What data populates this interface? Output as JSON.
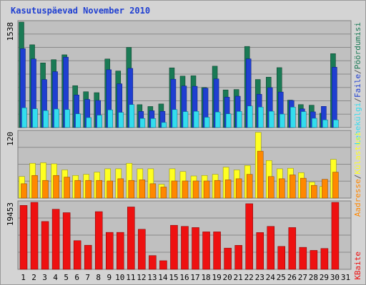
{
  "title": "Kasutuspäevad November 2010",
  "colors": {
    "page_bg": "#d4d4d4",
    "panel_bg": "#c0c0c0",
    "grid": "#8a8a8a",
    "title": "#1f3fd1",
    "weekend_tick": "#1a7a44",
    "pages_back": "#1a7a55",
    "files_mid": "#1f3fd1",
    "visits_front": "#33ddee",
    "visits_top": "#ffff22",
    "sites_front": "#ff8800",
    "kbytes": "#ee1111",
    "legend_slash": "#555555"
  },
  "chart_data": [
    {
      "type": "bar",
      "title": "Kasutuspäevad November 2010",
      "categories": [
        "1",
        "2",
        "3",
        "4",
        "5",
        "6",
        "7",
        "8",
        "9",
        "10",
        "11",
        "12",
        "13",
        "14",
        "15",
        "16",
        "17",
        "18",
        "19",
        "20",
        "21",
        "22",
        "23",
        "24",
        "25",
        "26",
        "27",
        "28",
        "29",
        "30",
        "31"
      ],
      "weekend_days": [
        "6",
        "7",
        "13",
        "14",
        "20",
        "21",
        "27",
        "28"
      ],
      "ymax_label": "1538",
      "ylim": [
        0,
        1538
      ],
      "legend": [
        "Pöördumisi",
        "Faile",
        "Lehekülgi"
      ],
      "legend_position": "right",
      "series": [
        {
          "name": "Pöördumisi",
          "values": [
            1538,
            1207,
            943,
            990,
            1061,
            611,
            522,
            509,
            1000,
            825,
            1169,
            334,
            307,
            344,
            871,
            750,
            755,
            584,
            895,
            549,
            555,
            1183,
            701,
            735,
            874,
            400,
            335,
            326,
            209,
            1078,
            0
          ]
        },
        {
          "name": "Faile",
          "values": [
            1151,
            1000,
            700,
            815,
            1027,
            475,
            410,
            395,
            843,
            638,
            863,
            235,
            245,
            237,
            705,
            606,
            602,
            574,
            709,
            443,
            457,
            1002,
            485,
            582,
            518,
            395,
            272,
            229,
            309,
            880,
            0
          ]
        },
        {
          "name": "Lehekülgi",
          "values": [
            288,
            273,
            248,
            270,
            262,
            200,
            145,
            181,
            258,
            221,
            335,
            133,
            131,
            74,
            262,
            233,
            237,
            150,
            227,
            200,
            235,
            314,
            299,
            238,
            197,
            298,
            233,
            135,
            112,
            112,
            0
          ]
        }
      ]
    },
    {
      "type": "bar",
      "categories": [
        "1",
        "2",
        "3",
        "4",
        "5",
        "6",
        "7",
        "8",
        "9",
        "10",
        "11",
        "12",
        "13",
        "14",
        "15",
        "16",
        "17",
        "18",
        "19",
        "20",
        "21",
        "22",
        "23",
        "24",
        "25",
        "26",
        "27",
        "28",
        "29",
        "30",
        "31"
      ],
      "ymax_label": "120",
      "ylim": [
        0,
        120
      ],
      "legend": [
        "Külastusi",
        "Aadresse"
      ],
      "legend_position": "right",
      "series": [
        {
          "name": "Külastusi",
          "values": [
            39,
            63,
            64,
            62,
            51,
            41,
            43,
            47,
            53,
            53,
            63,
            53,
            53,
            25,
            53,
            48,
            40,
            41,
            43,
            56,
            51,
            59,
            119,
            68,
            53,
            54,
            46,
            29,
            21,
            70,
            0
          ]
        },
        {
          "name": "Aadresse",
          "values": [
            26,
            41,
            32,
            41,
            38,
            32,
            32,
            32,
            31,
            35,
            32,
            33,
            26,
            20,
            31,
            31,
            31,
            31,
            32,
            33,
            35,
            43,
            85,
            39,
            35,
            42,
            36,
            23,
            34,
            47,
            0
          ]
        }
      ]
    },
    {
      "type": "bar",
      "categories": [
        "1",
        "2",
        "3",
        "4",
        "5",
        "6",
        "7",
        "8",
        "9",
        "10",
        "11",
        "12",
        "13",
        "14",
        "15",
        "16",
        "17",
        "18",
        "19",
        "20",
        "21",
        "22",
        "23",
        "24",
        "25",
        "26",
        "27",
        "28",
        "29",
        "30",
        "31"
      ],
      "ymax_label": "19453",
      "ylim": [
        0,
        19453
      ],
      "legend": [
        "KBaite"
      ],
      "legend_position": "right",
      "series": [
        {
          "name": "KBaite",
          "values": [
            18565,
            19453,
            13892,
            17456,
            16456,
            8327,
            7003,
            16757,
            10735,
            10735,
            18116,
            11635,
            4000,
            2500,
            12797,
            12472,
            12134,
            10883,
            10883,
            6172,
            6966,
            19062,
            10686,
            12472,
            6660,
            12134,
            6391,
            5497,
            6059,
            19453,
            0
          ]
        }
      ]
    }
  ]
}
